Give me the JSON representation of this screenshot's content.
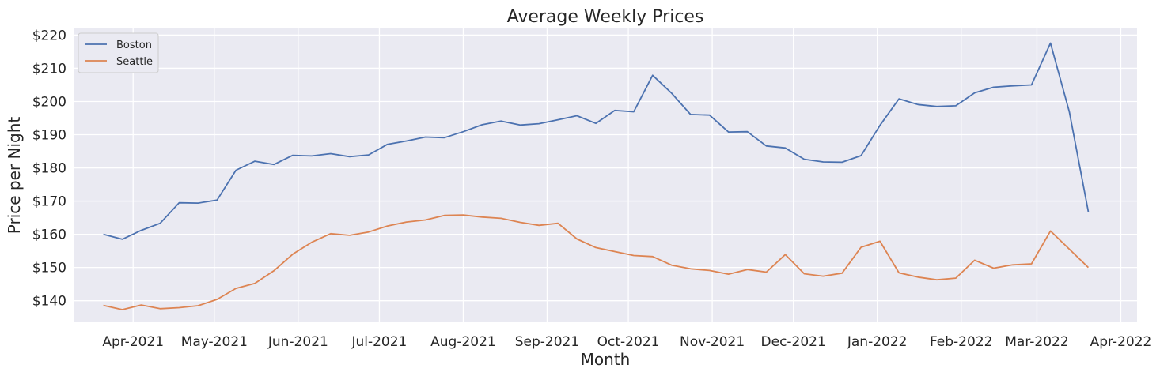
{
  "chart_data": {
    "type": "line",
    "title": "Average Weekly Prices",
    "xlabel": "Month",
    "ylabel": "Price per Night",
    "x_tick_labels": [
      "Apr-2021",
      "May-2021",
      "Jun-2021",
      "Jul-2021",
      "Aug-2021",
      "Sep-2021",
      "Oct-2021",
      "Nov-2021",
      "Dec-2021",
      "Jan-2022",
      "Feb-2022",
      "Mar-2022",
      "Apr-2022"
    ],
    "x_tick_dates": [
      "2021-04-01",
      "2021-05-01",
      "2021-06-01",
      "2021-07-01",
      "2021-08-01",
      "2021-09-01",
      "2021-10-01",
      "2021-11-01",
      "2021-12-01",
      "2022-01-01",
      "2022-02-01",
      "2022-03-01",
      "2022-04-01"
    ],
    "y_tick_labels": [
      "$140",
      "$150",
      "$160",
      "$170",
      "$180",
      "$190",
      "$200",
      "$210",
      "$220"
    ],
    "y_ticks": [
      140,
      150,
      160,
      170,
      180,
      190,
      200,
      210,
      220
    ],
    "ylim": [
      133.5,
      222
    ],
    "xlim": [
      "2021-03-10",
      "2022-04-07"
    ],
    "grid": true,
    "legend_position": "top-left",
    "x": [
      "2021-03-21",
      "2021-03-28",
      "2021-04-04",
      "2021-04-11",
      "2021-04-18",
      "2021-04-25",
      "2021-05-02",
      "2021-05-09",
      "2021-05-16",
      "2021-05-23",
      "2021-05-30",
      "2021-06-06",
      "2021-06-13",
      "2021-06-20",
      "2021-06-27",
      "2021-07-04",
      "2021-07-11",
      "2021-07-18",
      "2021-07-25",
      "2021-08-01",
      "2021-08-08",
      "2021-08-15",
      "2021-08-22",
      "2021-08-29",
      "2021-09-05",
      "2021-09-12",
      "2021-09-19",
      "2021-09-26",
      "2021-10-03",
      "2021-10-10",
      "2021-10-17",
      "2021-10-24",
      "2021-10-31",
      "2021-11-07",
      "2021-11-14",
      "2021-11-21",
      "2021-11-28",
      "2021-12-05",
      "2021-12-12",
      "2021-12-19",
      "2021-12-26",
      "2022-01-02",
      "2022-01-09",
      "2022-01-16",
      "2022-01-23",
      "2022-01-30",
      "2022-02-06",
      "2022-02-13",
      "2022-02-20",
      "2022-02-27",
      "2022-03-06",
      "2022-03-13",
      "2022-03-20"
    ],
    "series": [
      {
        "name": "Boston",
        "color": "#4c72b0",
        "values": [
          160.0,
          158.5,
          161.2,
          163.3,
          169.5,
          169.4,
          170.3,
          179.3,
          182.0,
          181.0,
          183.8,
          183.6,
          184.3,
          183.4,
          183.9,
          187.1,
          188.1,
          189.3,
          189.1,
          190.9,
          193.0,
          194.1,
          192.9,
          193.3,
          194.5,
          195.7,
          193.4,
          197.3,
          196.9,
          207.9,
          202.5,
          196.1,
          195.9,
          190.8,
          190.9,
          186.6,
          186.0,
          182.6,
          181.8,
          181.7,
          183.7,
          192.8,
          200.8,
          199.1,
          198.5,
          198.7,
          202.6,
          204.3,
          204.7,
          205.0,
          217.6,
          196.8,
          166.8
        ]
      },
      {
        "name": "Seattle",
        "color": "#dd8452",
        "values": [
          138.6,
          137.3,
          138.7,
          137.6,
          137.9,
          138.5,
          140.4,
          143.7,
          145.2,
          149.0,
          154.0,
          157.6,
          160.2,
          159.7,
          160.7,
          162.5,
          163.7,
          164.3,
          165.7,
          165.8,
          165.2,
          164.8,
          163.6,
          162.7,
          163.3,
          158.6,
          156.0,
          154.8,
          153.6,
          153.3,
          150.7,
          149.6,
          149.1,
          148.0,
          149.4,
          148.6,
          153.9,
          148.1,
          147.4,
          148.3,
          156.1,
          157.9,
          148.4,
          147.1,
          146.3,
          146.8,
          152.2,
          149.8,
          150.8,
          151.1,
          161.0,
          155.5,
          150.0
        ]
      }
    ]
  }
}
